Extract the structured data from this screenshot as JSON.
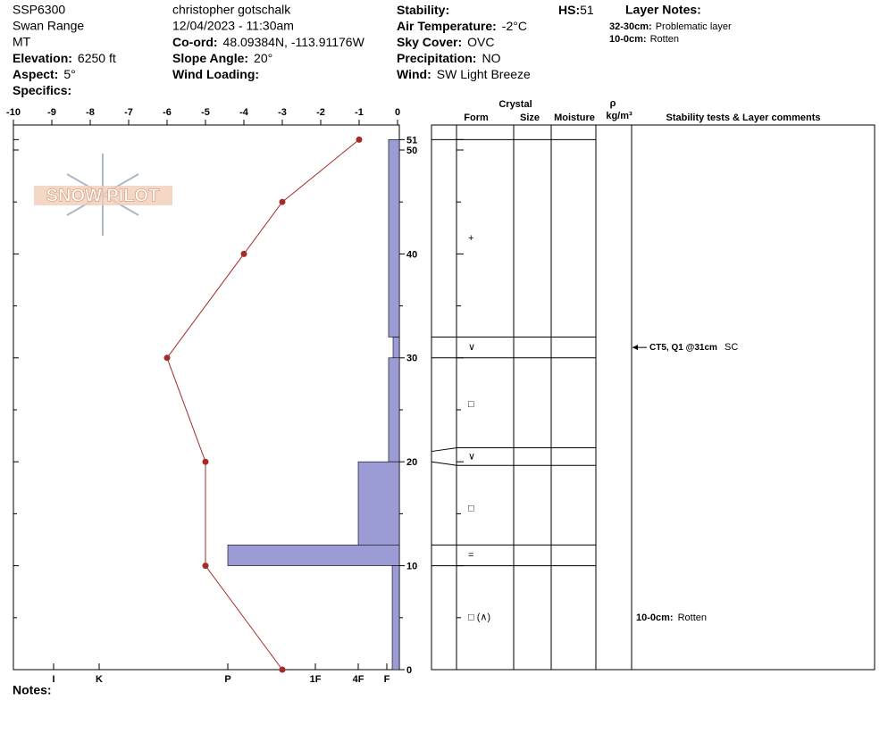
{
  "header": {
    "col1": [
      {
        "text": "SSP6300"
      },
      {
        "text": "Swan Range"
      },
      {
        "text": "MT"
      },
      {
        "label": "Elevation:",
        "value": "6250 ft"
      },
      {
        "label": "Aspect:",
        "value": "5°"
      },
      {
        "label": "Specifics:"
      }
    ],
    "col2": [
      {
        "text": "christopher gotschalk"
      },
      {
        "text": "12/04/2023 - 11:30am"
      },
      {
        "label": "Co-ord:",
        "value": "48.09384N, -113.91176W"
      },
      {
        "label": "Slope Angle:",
        "value": "20°"
      },
      {
        "label": "Wind Loading:"
      }
    ],
    "col3": [
      {
        "label": "Stability:"
      },
      {
        "label": "Air Temperature:",
        "value": "-2°C"
      },
      {
        "label": "Sky Cover:",
        "value": "OVC"
      },
      {
        "label": "Precipitation:",
        "value": "NO"
      },
      {
        "label": "Wind:",
        "value": "SW Light Breeze"
      }
    ],
    "hs_label": "HS:",
    "hs": 51,
    "layer_notes_title": "Layer Notes:",
    "layer_notes": [
      {
        "label": "32-30cm:",
        "value": "Problematic layer"
      },
      {
        "label": "10-0cm:",
        "value": "Rotten"
      }
    ]
  },
  "logo": "SNOW PILOT",
  "chart_data": [
    {
      "type": "line",
      "color": "#a52a2a",
      "x": [
        -1,
        -3,
        -4,
        -6,
        -5,
        -5,
        -3
      ],
      "y": [
        51,
        45,
        40,
        30,
        20,
        10,
        0
      ],
      "xlim": [
        -10,
        0
      ],
      "xticks": [
        -10,
        -9,
        -8,
        -7,
        -6,
        -5,
        -4,
        -3,
        -2,
        -1,
        0
      ],
      "ylim": [
        0,
        52.5
      ],
      "yticks": [
        0,
        10,
        20,
        30,
        40,
        50,
        51
      ],
      "yminor": [
        5,
        15,
        25,
        35,
        45
      ]
    },
    {
      "type": "bar",
      "color": "#9b9bd6",
      "tops": [
        51,
        32,
        30,
        20,
        12,
        10
      ],
      "bottoms": [
        32,
        30,
        20,
        12,
        10,
        0
      ],
      "values": [
        0.86,
        0.5,
        0.86,
        2,
        4,
        0.57
      ],
      "xticks": [
        {
          "value": 1,
          "label": "F"
        },
        {
          "value": 2,
          "label": "4F"
        },
        {
          "value": 3,
          "label": "1F"
        },
        {
          "value": 4,
          "label": "P"
        },
        {
          "value": 5,
          "label": "K"
        },
        {
          "value": 6,
          "label": "I"
        }
      ]
    }
  ],
  "profile": {
    "crystal": "Crystal",
    "columns": [
      "Form",
      "Size",
      "Moisture"
    ],
    "rho": "ρ",
    "rho_unit": "kg/m³",
    "comments_title": "Stability tests & Layer comments",
    "boundaries": [
      51,
      32,
      30,
      21,
      20,
      12,
      10
    ],
    "forms": [
      {
        "depth": 41.5,
        "symbol": "+"
      },
      {
        "depth": 31,
        "symbol": "∨"
      },
      {
        "depth": 25.5,
        "symbol": "□"
      },
      {
        "depth": 20.5,
        "symbol": "∨"
      },
      {
        "depth": 15.5,
        "symbol": "□"
      },
      {
        "depth": 11,
        "symbol": "="
      },
      {
        "depth": 5,
        "symbol": "□ (∧)"
      }
    ],
    "tests": [
      {
        "depth": 31,
        "text": "CT5, Q1 @31cm",
        "code": "SC"
      }
    ],
    "comments": [
      {
        "depth": 5,
        "label": "10-0cm:",
        "text": "Rotten"
      }
    ]
  },
  "notes": "Notes:"
}
